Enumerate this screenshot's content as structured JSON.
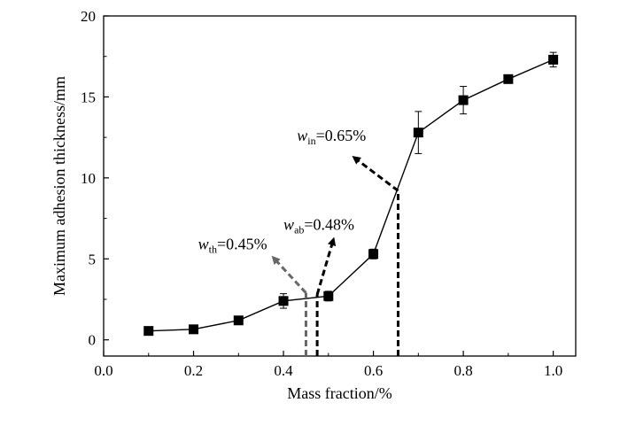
{
  "chart_data": {
    "type": "line",
    "xlabel": "Mass fraction/%",
    "ylabel": "Maximum adhesion thickness/mm",
    "xlim": [
      0.0,
      1.05
    ],
    "ylim": [
      -1,
      20
    ],
    "x_ticks": [
      "0.0",
      "0.2",
      "0.4",
      "0.6",
      "0.8",
      "1.0"
    ],
    "y_ticks": [
      "0",
      "5",
      "10",
      "15",
      "20"
    ],
    "grid": false,
    "series": [
      {
        "x": [
          0.1,
          0.2,
          0.3,
          0.4,
          0.5,
          0.6,
          0.7,
          0.8,
          0.9,
          1.0
        ],
        "y": [
          0.55,
          0.65,
          1.2,
          2.4,
          2.7,
          5.3,
          12.8,
          14.8,
          16.1,
          17.3
        ],
        "error": [
          0.15,
          0.15,
          0.2,
          0.45,
          0.3,
          0.3,
          1.3,
          0.85,
          0.2,
          0.45
        ],
        "marker": "square",
        "color": "#000000"
      }
    ],
    "annotations": [
      {
        "var": "w",
        "sub": "th",
        "text": "=0.45%",
        "x_value": 0.45,
        "line_top": 2.9,
        "arrow_to": [
          0.38,
          5.0
        ],
        "text_at": [
          0.21,
          5.6
        ],
        "color": "#666666"
      },
      {
        "var": "w",
        "sub": "ab",
        "text": "=0.48%",
        "x_value": 0.475,
        "line_top": 2.8,
        "arrow_to": [
          0.51,
          6.1
        ],
        "text_at": [
          0.4,
          6.8
        ],
        "color": "#000000"
      },
      {
        "var": "w",
        "sub": "in",
        "text": "=0.65%",
        "x_value": 0.655,
        "line_top": 9.2,
        "arrow_to": [
          0.56,
          11.2
        ],
        "text_at": [
          0.43,
          12.3
        ],
        "color": "#000000"
      }
    ]
  }
}
